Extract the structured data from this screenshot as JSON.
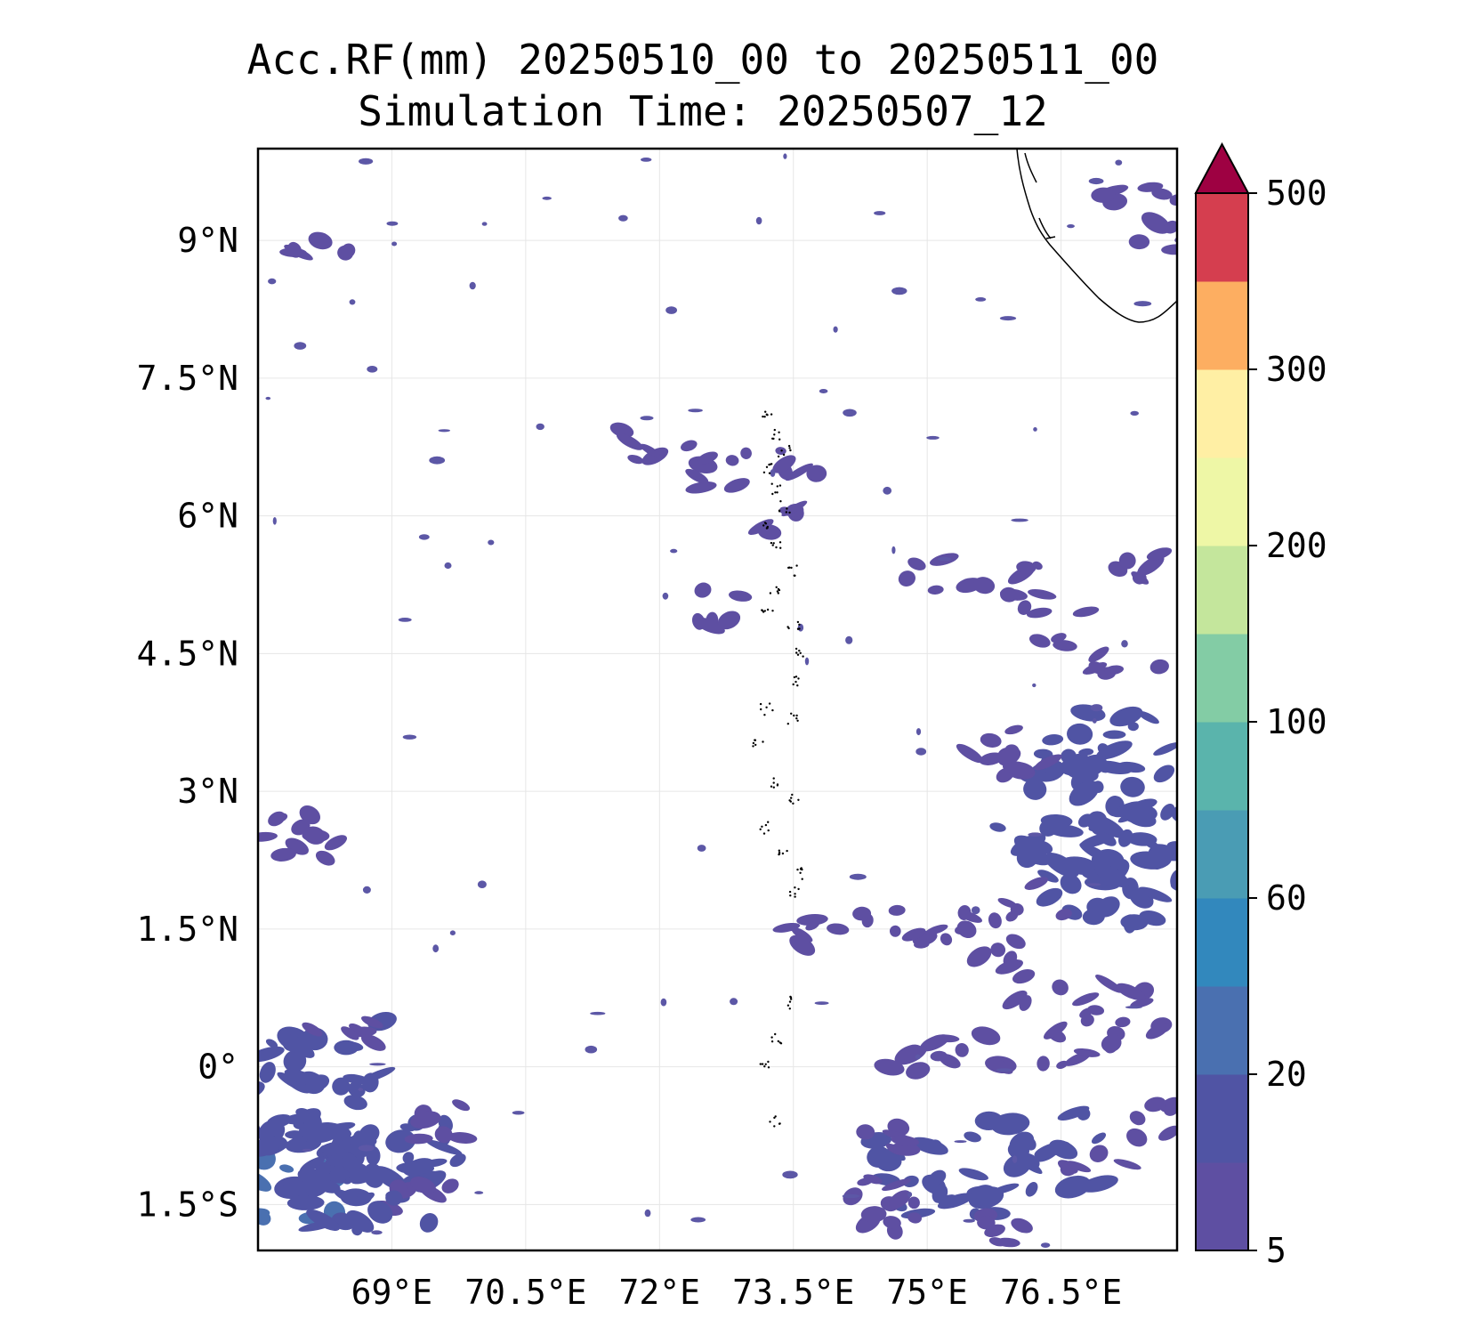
{
  "title": "Acc.RF(mm) 20250510_00 to 20250511_00",
  "subtitle": "Simulation Time: 20250507_12",
  "map": {
    "lon_range": [
      67.5,
      77.8
    ],
    "lat_range": [
      -2.0,
      10.0
    ],
    "x_ticks": [
      {
        "value": 69.0,
        "label": "69°E"
      },
      {
        "value": 70.5,
        "label": "70.5°E"
      },
      {
        "value": 72.0,
        "label": "72°E"
      },
      {
        "value": 73.5,
        "label": "73.5°E"
      },
      {
        "value": 75.0,
        "label": "75°E"
      },
      {
        "value": 76.5,
        "label": "76.5°E"
      }
    ],
    "y_ticks": [
      {
        "value": 9.0,
        "label": "9°N"
      },
      {
        "value": 7.5,
        "label": "7.5°N"
      },
      {
        "value": 6.0,
        "label": "6°N"
      },
      {
        "value": 4.5,
        "label": "4.5°N"
      },
      {
        "value": 3.0,
        "label": "3°N"
      },
      {
        "value": 1.5,
        "label": "1.5°N"
      },
      {
        "value": 0.0,
        "label": "0°"
      },
      {
        "value": -1.5,
        "label": "1.5°S"
      }
    ],
    "grid": true,
    "rain_color": "#5c57a6",
    "coastline_color": "#000000"
  },
  "colorbar": {
    "levels": [
      5,
      10,
      20,
      40,
      60,
      80,
      100,
      150,
      200,
      250,
      300,
      400,
      500
    ],
    "colors": [
      "#5e4fa2",
      "#5054a4",
      "#4a70b0",
      "#3288bd",
      "#4a9cb4",
      "#5ab4ac",
      "#83cca5",
      "#c4e69c",
      "#eef7a6",
      "#ffefa4",
      "#fdae61",
      "#d53e4f"
    ],
    "extend_color": "#9e0142",
    "tick_labels": [
      {
        "value": 5,
        "label": "5"
      },
      {
        "value": 20,
        "label": "20"
      },
      {
        "value": 60,
        "label": "60"
      },
      {
        "value": 100,
        "label": "100"
      },
      {
        "value": 200,
        "label": "200"
      },
      {
        "value": 300,
        "label": "300"
      },
      {
        "value": 500,
        "label": "500"
      }
    ]
  },
  "chart_data": {
    "type": "heatmap",
    "title": "Acc.RF(mm) 20250510_00 to 20250511_00",
    "subtitle": "Simulation Time: 20250507_12",
    "x_range": [
      67.5,
      77.8
    ],
    "y_range": [
      -2.0,
      10.0
    ],
    "color_levels": [
      5,
      10,
      20,
      40,
      60,
      80,
      100,
      150,
      200,
      250,
      300,
      400,
      500
    ],
    "rain_cells": [
      {
        "lon": 73.6,
        "lat": 1.5,
        "value": 8
      },
      {
        "lon": 73.3,
        "lat": 6.0,
        "value": 8
      },
      {
        "lon": 72.5,
        "lat": 5.0,
        "value": 8
      },
      {
        "lon": 72.7,
        "lat": 6.5,
        "value": 7
      },
      {
        "lon": 75.2,
        "lat": 5.4,
        "value": 8
      },
      {
        "lon": 75.9,
        "lat": 5.3,
        "value": 7
      },
      {
        "lon": 76.5,
        "lat": 4.8,
        "value": 7
      },
      {
        "lon": 77.3,
        "lat": 4.4,
        "value": 8
      },
      {
        "lon": 77.5,
        "lat": 5.5,
        "value": 7
      },
      {
        "lon": 76.8,
        "lat": 3.5,
        "value": 12
      },
      {
        "lon": 77.4,
        "lat": 3.1,
        "value": 12
      },
      {
        "lon": 76.9,
        "lat": 2.9,
        "value": 15
      },
      {
        "lon": 77.6,
        "lat": 2.5,
        "value": 15
      },
      {
        "lon": 76.3,
        "lat": 2.4,
        "value": 12
      },
      {
        "lon": 77.0,
        "lat": 2.0,
        "value": 12
      },
      {
        "lon": 77.6,
        "lat": 1.9,
        "value": 10
      },
      {
        "lon": 76.0,
        "lat": 3.5,
        "value": 8
      },
      {
        "lon": 75.6,
        "lat": 3.3,
        "value": 8
      },
      {
        "lon": 76.1,
        "lat": 1.8,
        "value": 8
      },
      {
        "lon": 75.8,
        "lat": 1.3,
        "value": 7
      },
      {
        "lon": 76.4,
        "lat": 0.8,
        "value": 8
      },
      {
        "lon": 77.0,
        "lat": 0.7,
        "value": 8
      },
      {
        "lon": 76.6,
        "lat": 0.2,
        "value": 8
      },
      {
        "lon": 77.4,
        "lat": 0.3,
        "value": 8
      },
      {
        "lon": 75.5,
        "lat": 0.2,
        "value": 7
      },
      {
        "lon": 75.0,
        "lat": 0.1,
        "value": 7
      },
      {
        "lon": 74.6,
        "lat": 1.5,
        "value": 7
      },
      {
        "lon": 75.1,
        "lat": 1.5,
        "value": 7
      },
      {
        "lon": 76.3,
        "lat": -0.9,
        "value": 12
      },
      {
        "lon": 75.7,
        "lat": -1.0,
        "value": 10
      },
      {
        "lon": 75.1,
        "lat": -1.2,
        "value": 10
      },
      {
        "lon": 74.7,
        "lat": -0.7,
        "value": 8
      },
      {
        "lon": 77.0,
        "lat": -0.9,
        "value": 8
      },
      {
        "lon": 77.5,
        "lat": -0.6,
        "value": 7
      },
      {
        "lon": 74.5,
        "lat": -1.3,
        "value": 7
      },
      {
        "lon": 76.0,
        "lat": -1.7,
        "value": 7
      },
      {
        "lon": 74.6,
        "lat": -1.6,
        "value": 7
      },
      {
        "lon": 67.8,
        "lat": -1.4,
        "value": 25
      },
      {
        "lon": 68.1,
        "lat": -1.0,
        "value": 18
      },
      {
        "lon": 68.4,
        "lat": -0.5,
        "value": 15
      },
      {
        "lon": 67.8,
        "lat": -0.6,
        "value": 15
      },
      {
        "lon": 68.6,
        "lat": -1.0,
        "value": 12
      },
      {
        "lon": 68.2,
        "lat": 0.1,
        "value": 12
      },
      {
        "lon": 68.8,
        "lat": -1.3,
        "value": 12
      },
      {
        "lon": 69.1,
        "lat": -1.0,
        "value": 10
      },
      {
        "lon": 69.3,
        "lat": -1.4,
        "value": 8
      },
      {
        "lon": 68.5,
        "lat": -1.6,
        "value": 10
      },
      {
        "lon": 68.5,
        "lat": 0.3,
        "value": 8
      },
      {
        "lon": 69.4,
        "lat": -0.6,
        "value": 7
      },
      {
        "lon": 67.7,
        "lat": 2.6,
        "value": 8
      },
      {
        "lon": 68.0,
        "lat": 2.4,
        "value": 8
      },
      {
        "lon": 77.4,
        "lat": 9.6,
        "value": 8
      },
      {
        "lon": 77.5,
        "lat": 9.1,
        "value": 7
      },
      {
        "lon": 68.1,
        "lat": 8.8,
        "value": 7
      },
      {
        "lon": 73.4,
        "lat": 6.6,
        "value": 7
      },
      {
        "lon": 72.0,
        "lat": 6.8,
        "value": 7
      }
    ]
  }
}
